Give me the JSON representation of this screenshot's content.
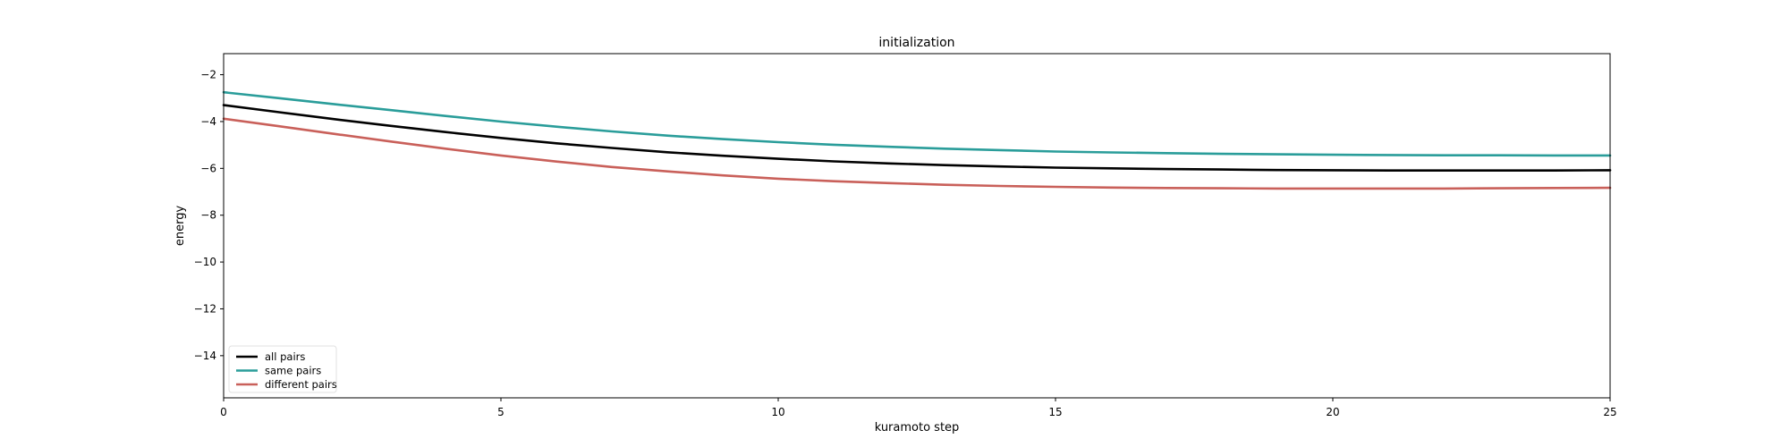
{
  "chart_data": {
    "type": "line",
    "title": "initialization",
    "xlabel": "kuramoto step",
    "ylabel": "energy",
    "xlim": [
      0,
      25
    ],
    "ylim": [
      -15.8,
      -1.1
    ],
    "xticks": [
      0,
      5,
      10,
      15,
      20,
      25
    ],
    "yticks": [
      -2,
      -4,
      -6,
      -8,
      -10,
      -12,
      -14
    ],
    "grid": false,
    "legend_position": "lower-left",
    "x": [
      0,
      1,
      2,
      3,
      4,
      5,
      6,
      7,
      8,
      9,
      10,
      11,
      12,
      13,
      14,
      15,
      16,
      17,
      18,
      19,
      20,
      21,
      22,
      23,
      24,
      25
    ],
    "series": [
      {
        "name": "all pairs",
        "color": "#000000",
        "values": [
          -3.3,
          -3.6,
          -3.9,
          -4.18,
          -4.45,
          -4.7,
          -4.93,
          -5.13,
          -5.31,
          -5.46,
          -5.59,
          -5.7,
          -5.79,
          -5.86,
          -5.92,
          -5.97,
          -6.0,
          -6.03,
          -6.05,
          -6.07,
          -6.08,
          -6.09,
          -6.09,
          -6.09,
          -6.09,
          -6.08
        ]
      },
      {
        "name": "same pairs",
        "color": "#2a9d9a",
        "values": [
          -2.75,
          -3.0,
          -3.26,
          -3.51,
          -3.76,
          -4.0,
          -4.22,
          -4.42,
          -4.6,
          -4.75,
          -4.88,
          -4.99,
          -5.08,
          -5.16,
          -5.22,
          -5.28,
          -5.32,
          -5.35,
          -5.38,
          -5.4,
          -5.42,
          -5.43,
          -5.44,
          -5.44,
          -5.45,
          -5.45
        ]
      },
      {
        "name": "different pairs",
        "color": "#c9605a",
        "values": [
          -3.88,
          -4.2,
          -4.53,
          -4.85,
          -5.16,
          -5.45,
          -5.71,
          -5.94,
          -6.13,
          -6.3,
          -6.44,
          -6.55,
          -6.63,
          -6.7,
          -6.75,
          -6.79,
          -6.82,
          -6.84,
          -6.85,
          -6.86,
          -6.86,
          -6.86,
          -6.86,
          -6.85,
          -6.84,
          -6.83
        ]
      }
    ]
  }
}
